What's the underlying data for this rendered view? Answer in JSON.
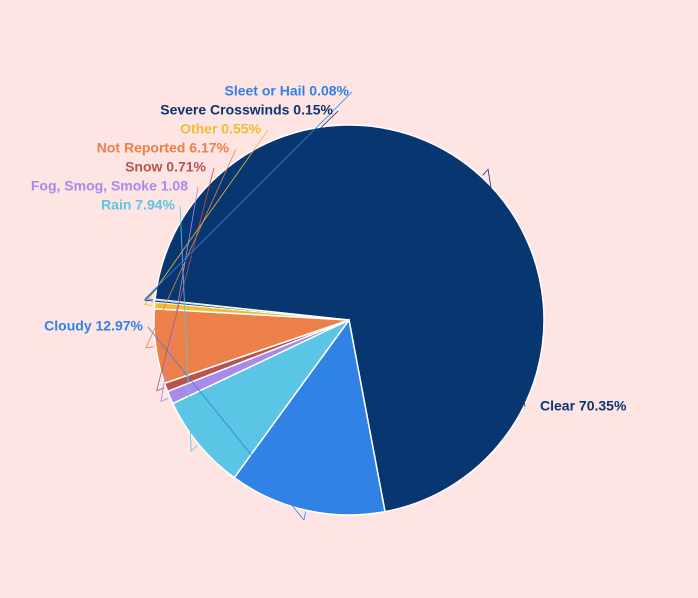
{
  "chart_data": {
    "type": "pie",
    "title": "",
    "background": "#ffe4e4",
    "slice_border": "#ffffff",
    "slices": [
      {
        "label": "Clear",
        "value": 70.35,
        "text": "Clear 70.35%",
        "color": "#073671"
      },
      {
        "label": "Cloudy",
        "value": 12.97,
        "text": "Cloudy 12.97%",
        "color": "#3182e5"
      },
      {
        "label": "Rain",
        "value": 7.94,
        "text": "Rain 7.94%",
        "color": "#5bc5e6"
      },
      {
        "label": "Fog, Smog, Smoke",
        "value": 1.08,
        "text": "Fog, Smog, Smoke 1.08",
        "color": "#a98ae8"
      },
      {
        "label": "Snow",
        "value": 0.71,
        "text": "Snow 0.71%",
        "color": "#b85450"
      },
      {
        "label": "Not Reported",
        "value": 6.17,
        "text": "Not Reported 6.17%",
        "color": "#ed8049"
      },
      {
        "label": "Other",
        "value": 0.55,
        "text": "Other 0.55%",
        "color": "#f2bc31"
      },
      {
        "label": "Severe Crosswinds",
        "value": 0.15,
        "text": "Severe Crosswinds 0.15%",
        "color": "#0b3470"
      },
      {
        "label": "Sleet or Hail",
        "value": 0.08,
        "text": "Sleet or Hail 0.08%",
        "color": "#3182e5"
      }
    ]
  }
}
